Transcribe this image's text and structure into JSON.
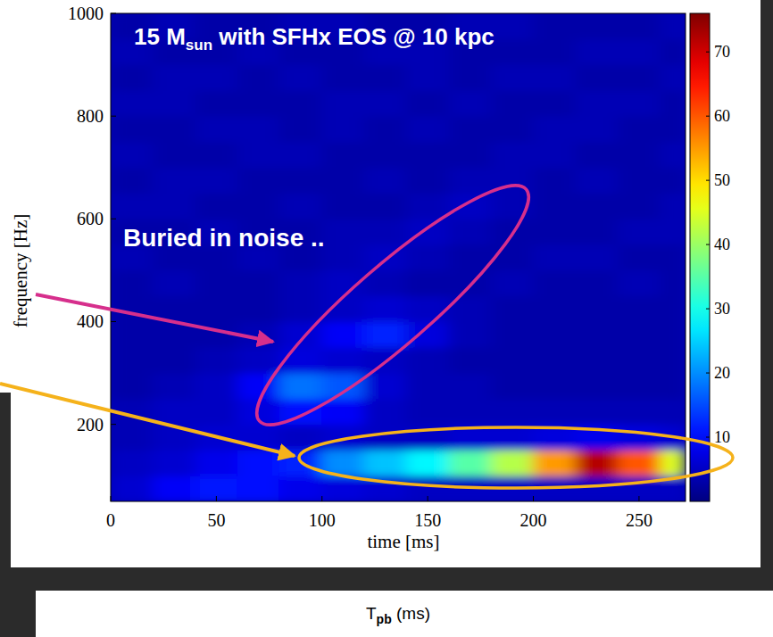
{
  "chart_data": {
    "type": "heatmap",
    "title": [
      "15 M",
      "sun",
      " with SFHx EOS @ 10 kpc"
    ],
    "xlabel": "time [ms]",
    "ylabel": "frequency [Hz]",
    "annotations": [
      "Buried in noise .."
    ],
    "caption": [
      "T",
      "pb",
      " (ms)"
    ],
    "xlim": [
      0,
      272
    ],
    "ylim": [
      50,
      1000
    ],
    "xticks": [
      0,
      50,
      100,
      150,
      200,
      250
    ],
    "yticks": [
      200,
      400,
      600,
      800,
      1000
    ],
    "x_bins": [
      0,
      20,
      40,
      60,
      80,
      100,
      120,
      140,
      160,
      180,
      200,
      220,
      240,
      260,
      272
    ],
    "y_bins": [
      50,
      100,
      150,
      200,
      250,
      300,
      350,
      400,
      450,
      500,
      550,
      600,
      650,
      700,
      750,
      800,
      850,
      900,
      950,
      1000
    ],
    "cells": [
      [
        6,
        9,
        11,
        10,
        8,
        7,
        6,
        5,
        5,
        5,
        5,
        5,
        5,
        5
      ],
      [
        5,
        6,
        8,
        10,
        12,
        20,
        24,
        28,
        35,
        42,
        55,
        72,
        60,
        45
      ],
      [
        4,
        5,
        6,
        6,
        5,
        6,
        5,
        5,
        6,
        6,
        7,
        8,
        7,
        6
      ],
      [
        4,
        5,
        5,
        7,
        10,
        9,
        5,
        4,
        4,
        4,
        4,
        4,
        4,
        4
      ],
      [
        3,
        4,
        5,
        9,
        18,
        16,
        6,
        4,
        4,
        3,
        3,
        3,
        3,
        3
      ],
      [
        3,
        3,
        4,
        5,
        7,
        6,
        5,
        4,
        3,
        3,
        3,
        3,
        3,
        3
      ],
      [
        3,
        3,
        3,
        4,
        6,
        9,
        12,
        7,
        4,
        3,
        3,
        3,
        3,
        3
      ],
      [
        3,
        3,
        3,
        3,
        4,
        5,
        6,
        5,
        4,
        3,
        3,
        3,
        3,
        3
      ],
      [
        3,
        4,
        3,
        3,
        4,
        5,
        4,
        3,
        3,
        4,
        3,
        3,
        4,
        3
      ],
      [
        4,
        3,
        3,
        4,
        3,
        4,
        5,
        4,
        3,
        3,
        4,
        4,
        3,
        3
      ],
      [
        3,
        3,
        4,
        3,
        3,
        4,
        4,
        5,
        4,
        3,
        3,
        3,
        4,
        4
      ],
      [
        4,
        4,
        3,
        3,
        4,
        3,
        3,
        4,
        5,
        4,
        3,
        3,
        3,
        4
      ],
      [
        3,
        4,
        4,
        3,
        3,
        3,
        4,
        3,
        4,
        4,
        3,
        4,
        3,
        3
      ],
      [
        4,
        3,
        3,
        4,
        4,
        3,
        3,
        3,
        3,
        4,
        4,
        3,
        3,
        4
      ],
      [
        3,
        3,
        4,
        4,
        3,
        4,
        3,
        4,
        3,
        3,
        4,
        4,
        3,
        3
      ],
      [
        4,
        4,
        3,
        3,
        3,
        4,
        4,
        3,
        4,
        3,
        3,
        4,
        4,
        3
      ],
      [
        3,
        4,
        4,
        3,
        4,
        3,
        3,
        4,
        3,
        4,
        4,
        3,
        3,
        4
      ],
      [
        4,
        3,
        3,
        4,
        3,
        3,
        4,
        4,
        3,
        3,
        3,
        4,
        4,
        3
      ],
      [
        3,
        4,
        3,
        3,
        4,
        4,
        3,
        3,
        4,
        4,
        3,
        3,
        3,
        4
      ]
    ],
    "color_range": [
      0,
      76
    ],
    "color_ticks": [
      10,
      20,
      30,
      40,
      50,
      60,
      70
    ]
  }
}
